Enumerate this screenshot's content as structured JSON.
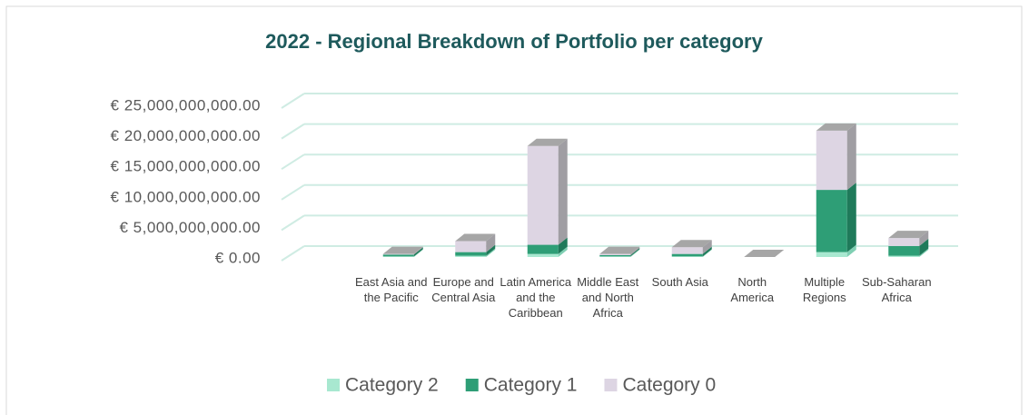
{
  "chart_data": {
    "type": "bar3d_stacked",
    "title": "2022 - Regional Breakdown of Portfolio per category",
    "categories": [
      "East Asia and the Pacific",
      "Europe and Central Asia",
      "Latin America and the Caribbean",
      "Middle East and North Africa",
      "South Asia",
      "North America",
      "Multiple Regions",
      "Sub-Saharan Africa"
    ],
    "series": [
      {
        "name": "Category 2",
        "color": "#a8e8d0",
        "side": "#7fcfb3",
        "values": [
          100000000,
          200000000,
          500000000,
          100000000,
          100000000,
          0,
          800000000,
          200000000
        ]
      },
      {
        "name": "Category 1",
        "color": "#2e9e76",
        "side": "#1f7a5a",
        "values": [
          300000000,
          600000000,
          1500000000,
          200000000,
          400000000,
          0,
          10200000000,
          1600000000
        ]
      },
      {
        "name": "Category 0",
        "color": "#ddd5e3",
        "side": "#a09ea3",
        "values": [
          100000000,
          1800000000,
          16200000000,
          200000000,
          1100000000,
          0,
          9700000000,
          1300000000
        ]
      }
    ],
    "ylim": [
      0,
      25000000000
    ],
    "yticks": [
      {
        "value": 0,
        "label": "€ 0.00"
      },
      {
        "value": 5000000000,
        "label": "€ 5,000,000,000.00"
      },
      {
        "value": 10000000000,
        "label": "€ 10,000,000,000.00"
      },
      {
        "value": 15000000000,
        "label": "€ 15,000,000,000.00"
      },
      {
        "value": 20000000000,
        "label": "€ 20,000,000,000.00"
      },
      {
        "value": 25000000000,
        "label": "€ 25,000,000,000.00"
      }
    ],
    "grid": true,
    "gridColor": "#cfece3",
    "legend": "bottom"
  }
}
